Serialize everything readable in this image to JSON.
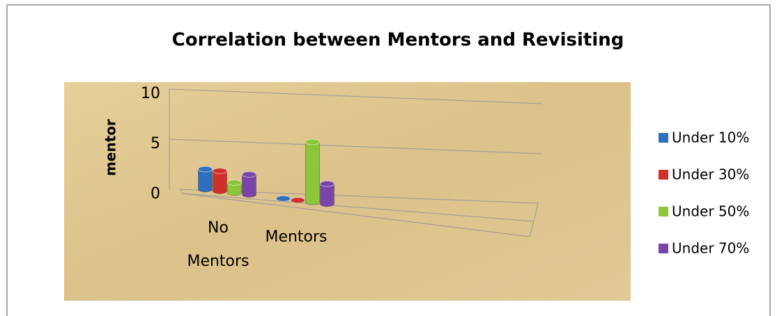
{
  "chart_data": {
    "type": "bar",
    "title": "Correlation between Mentors and Revisiting",
    "y_label": "mentor",
    "categories": [
      "No Mentors",
      "Mentors"
    ],
    "series": [
      {
        "name": "Under 10%",
        "color": "#2f6fc0",
        "values": [
          2,
          0
        ]
      },
      {
        "name": "Under 30%",
        "color": "#d0302c",
        "values": [
          2,
          0
        ]
      },
      {
        "name": "Under 50%",
        "color": "#8cc63a",
        "values": [
          1,
          6
        ]
      },
      {
        "name": "Under 70%",
        "color": "#7a45a8",
        "values": [
          2,
          2
        ]
      }
    ],
    "ylim": [
      0,
      10
    ],
    "yticks": [
      0,
      5,
      10
    ],
    "grid": true,
    "legend": "right"
  }
}
